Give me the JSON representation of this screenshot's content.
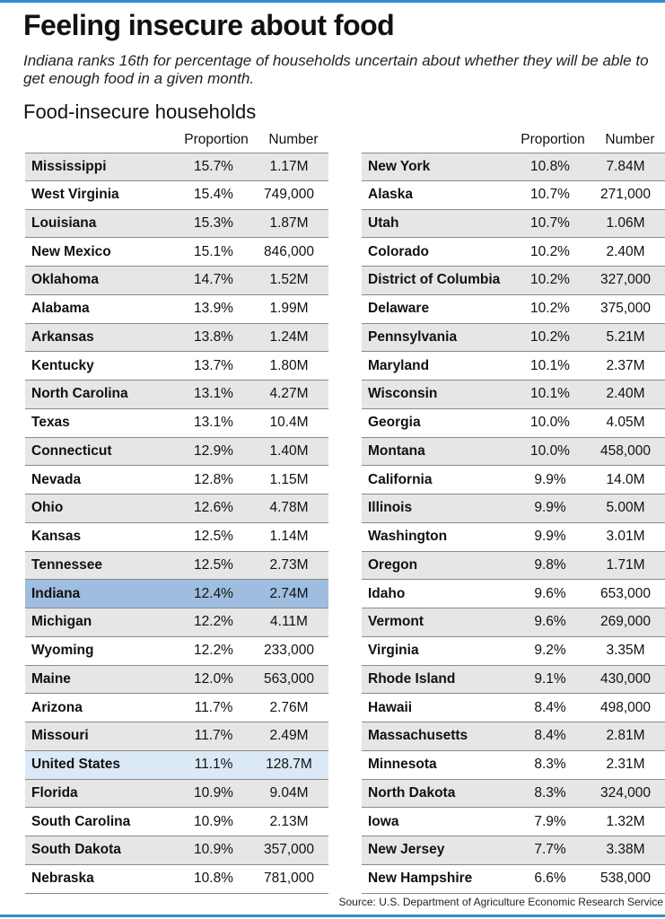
{
  "title": "Feeling insecure about food",
  "subtitle": "Indiana ranks 16th for percentage of households uncertain about whether they will be able to get enough food in a given month.",
  "chart_data": {
    "type": "table",
    "title": "Food-insecure households",
    "columns": [
      "Proportion",
      "Number"
    ],
    "left_table": [
      {
        "name": "Mississippi",
        "proportion": "15.7%",
        "number": "1.17M"
      },
      {
        "name": "West Virginia",
        "proportion": "15.4%",
        "number": "749,000"
      },
      {
        "name": "Louisiana",
        "proportion": "15.3%",
        "number": "1.87M"
      },
      {
        "name": "New Mexico",
        "proportion": "15.1%",
        "number": "846,000"
      },
      {
        "name": "Oklahoma",
        "proportion": "14.7%",
        "number": "1.52M"
      },
      {
        "name": "Alabama",
        "proportion": "13.9%",
        "number": "1.99M"
      },
      {
        "name": "Arkansas",
        "proportion": "13.8%",
        "number": "1.24M"
      },
      {
        "name": "Kentucky",
        "proportion": "13.7%",
        "number": "1.80M"
      },
      {
        "name": "North Carolina",
        "proportion": "13.1%",
        "number": "4.27M"
      },
      {
        "name": "Texas",
        "proportion": "13.1%",
        "number": "10.4M"
      },
      {
        "name": "Connecticut",
        "proportion": "12.9%",
        "number": "1.40M"
      },
      {
        "name": "Nevada",
        "proportion": "12.8%",
        "number": "1.15M"
      },
      {
        "name": "Ohio",
        "proportion": "12.6%",
        "number": "4.78M"
      },
      {
        "name": "Kansas",
        "proportion": "12.5%",
        "number": "1.14M"
      },
      {
        "name": "Tennessee",
        "proportion": "12.5%",
        "number": "2.73M"
      },
      {
        "name": "Indiana",
        "proportion": "12.4%",
        "number": "2.74M",
        "highlight": "indiana"
      },
      {
        "name": "Michigan",
        "proportion": "12.2%",
        "number": "4.11M"
      },
      {
        "name": "Wyoming",
        "proportion": "12.2%",
        "number": "233,000"
      },
      {
        "name": "Maine",
        "proportion": "12.0%",
        "number": "563,000"
      },
      {
        "name": "Arizona",
        "proportion": "11.7%",
        "number": "2.76M"
      },
      {
        "name": "Missouri",
        "proportion": "11.7%",
        "number": "2.49M"
      },
      {
        "name": "United States",
        "proportion": "11.1%",
        "number": "128.7M",
        "highlight": "us"
      },
      {
        "name": "Florida",
        "proportion": "10.9%",
        "number": "9.04M"
      },
      {
        "name": "South Carolina",
        "proportion": "10.9%",
        "number": "2.13M"
      },
      {
        "name": "South Dakota",
        "proportion": "10.9%",
        "number": "357,000"
      },
      {
        "name": "Nebraska",
        "proportion": "10.8%",
        "number": "781,000"
      }
    ],
    "right_table": [
      {
        "name": "New York",
        "proportion": "10.8%",
        "number": "7.84M"
      },
      {
        "name": "Alaska",
        "proportion": "10.7%",
        "number": "271,000"
      },
      {
        "name": "Utah",
        "proportion": "10.7%",
        "number": "1.06M"
      },
      {
        "name": "Colorado",
        "proportion": "10.2%",
        "number": "2.40M"
      },
      {
        "name": "District of Columbia",
        "proportion": "10.2%",
        "number": "327,000"
      },
      {
        "name": "Delaware",
        "proportion": "10.2%",
        "number": "375,000"
      },
      {
        "name": "Pennsylvania",
        "proportion": "10.2%",
        "number": "5.21M"
      },
      {
        "name": "Maryland",
        "proportion": "10.1%",
        "number": "2.37M"
      },
      {
        "name": "Wisconsin",
        "proportion": "10.1%",
        "number": "2.40M"
      },
      {
        "name": "Georgia",
        "proportion": "10.0%",
        "number": "4.05M"
      },
      {
        "name": "Montana",
        "proportion": "10.0%",
        "number": "458,000"
      },
      {
        "name": "California",
        "proportion": "9.9%",
        "number": "14.0M"
      },
      {
        "name": "Illinois",
        "proportion": "9.9%",
        "number": "5.00M"
      },
      {
        "name": "Washington",
        "proportion": "9.9%",
        "number": "3.01M"
      },
      {
        "name": "Oregon",
        "proportion": "9.8%",
        "number": "1.71M"
      },
      {
        "name": "Idaho",
        "proportion": "9.6%",
        "number": "653,000"
      },
      {
        "name": "Vermont",
        "proportion": "9.6%",
        "number": "269,000"
      },
      {
        "name": "Virginia",
        "proportion": "9.2%",
        "number": "3.35M"
      },
      {
        "name": "Rhode Island",
        "proportion": "9.1%",
        "number": "430,000"
      },
      {
        "name": "Hawaii",
        "proportion": "8.4%",
        "number": "498,000"
      },
      {
        "name": "Massachusetts",
        "proportion": "8.4%",
        "number": "2.81M"
      },
      {
        "name": "Minnesota",
        "proportion": "8.3%",
        "number": "2.31M"
      },
      {
        "name": "North Dakota",
        "proportion": "8.3%",
        "number": "324,000"
      },
      {
        "name": "Iowa",
        "proportion": "7.9%",
        "number": "1.32M"
      },
      {
        "name": "New Jersey",
        "proportion": "7.7%",
        "number": "3.38M"
      },
      {
        "name": "New Hampshire",
        "proportion": "6.6%",
        "number": "538,000"
      }
    ]
  },
  "source": "Source: U.S. Department of Agriculture Economic Research Service",
  "colors": {
    "accent_rule": "#2f8fce",
    "indiana_highlight": "#9fbde0",
    "us_highlight": "#dbe8f5",
    "stripe": "#e6e6e6"
  }
}
